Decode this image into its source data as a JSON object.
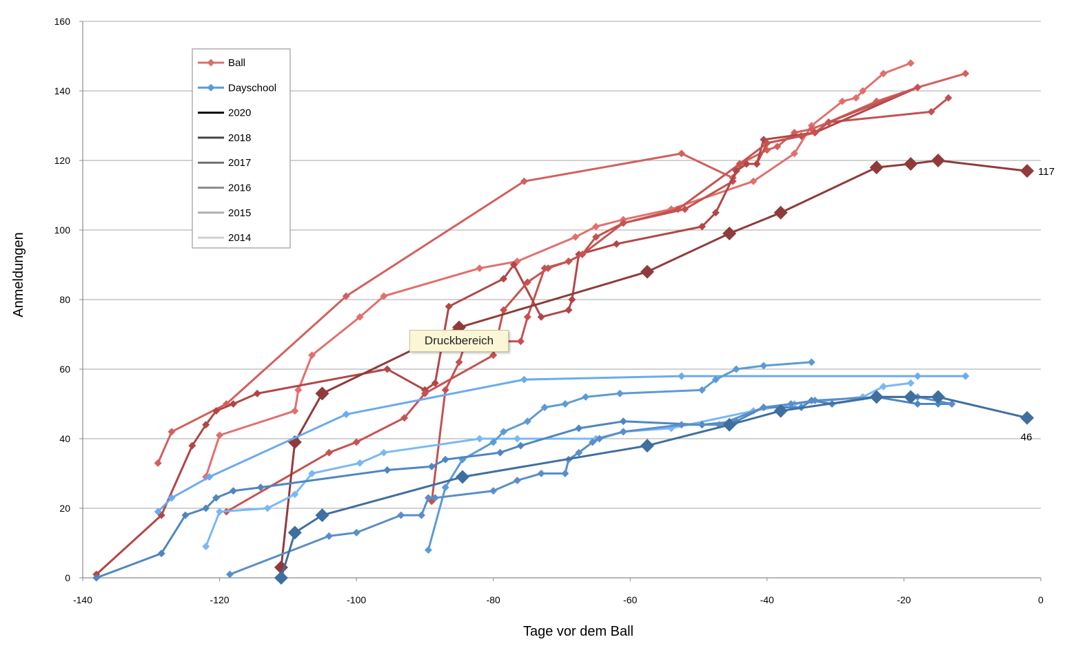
{
  "chart_data": {
    "type": "line",
    "xlabel": "Tage vor dem Ball",
    "ylabel": "Anmeldungen",
    "xlim": [
      -140,
      0
    ],
    "ylim": [
      0,
      160
    ],
    "x_ticks": [
      -140,
      -120,
      -100,
      -80,
      -60,
      -40,
      -20,
      0
    ],
    "y_ticks": [
      0,
      20,
      40,
      60,
      80,
      100,
      120,
      140,
      160
    ],
    "grid": "horizontal",
    "legend_position": "top-left",
    "legend": [
      {
        "label": "Ball",
        "color": "#d9706c",
        "marker": "diamond"
      },
      {
        "label": "Dayschool",
        "color": "#5b9bd5",
        "marker": "diamond"
      },
      {
        "label": "2020",
        "color": "#000000"
      },
      {
        "label": "2018",
        "color": "#444444"
      },
      {
        "label": "2017",
        "color": "#6f6f6f"
      },
      {
        "label": "2016",
        "color": "#8c8c8c"
      },
      {
        "label": "2015",
        "color": "#aeaeae"
      },
      {
        "label": "2014",
        "color": "#d0d0d0"
      }
    ],
    "tooltip": "Druckbereich",
    "series": [
      {
        "group": "Ball",
        "color": "#e0706d",
        "width": 3,
        "points": [
          [
            -122,
            29
          ],
          [
            -120,
            41
          ],
          [
            -109,
            48
          ],
          [
            -108.5,
            54
          ],
          [
            -106.5,
            64
          ],
          [
            -99.5,
            75
          ],
          [
            -96,
            81
          ],
          [
            -82,
            89
          ],
          [
            -76.5,
            91
          ],
          [
            -68,
            98
          ],
          [
            -65,
            101
          ],
          [
            -61,
            103
          ],
          [
            -54,
            106
          ],
          [
            -42,
            114
          ],
          [
            -36,
            122
          ],
          [
            -33.5,
            130
          ],
          [
            -29,
            137
          ],
          [
            -27,
            138
          ],
          [
            -26,
            140
          ],
          [
            -23,
            145
          ],
          [
            -19,
            148
          ]
        ]
      },
      {
        "group": "Ball",
        "color": "#d2605d",
        "width": 3,
        "points": [
          [
            -129,
            33
          ],
          [
            -127,
            42
          ],
          [
            -119,
            50
          ],
          [
            -101.5,
            81
          ],
          [
            -75.5,
            114
          ],
          [
            -52.5,
            122
          ],
          [
            -45,
            115
          ],
          [
            -44,
            119
          ],
          [
            -40,
            123
          ],
          [
            -38.5,
            124
          ],
          [
            -36,
            128
          ],
          [
            -33.5,
            129
          ],
          [
            -31,
            131
          ],
          [
            -24,
            137
          ],
          [
            -18,
            141
          ],
          [
            -11,
            145
          ]
        ]
      },
      {
        "group": "Ball",
        "color": "#c4514f",
        "width": 3,
        "points": [
          [
            -89,
            22
          ],
          [
            -87,
            54
          ],
          [
            -85,
            62
          ],
          [
            -84,
            68
          ],
          [
            -76,
            68
          ],
          [
            -75,
            75
          ],
          [
            -72.5,
            89
          ],
          [
            -69,
            91
          ],
          [
            -67,
            93
          ],
          [
            -65,
            98
          ],
          [
            -61,
            102
          ],
          [
            -52,
            106
          ],
          [
            -45,
            114
          ],
          [
            -44.5,
            117
          ],
          [
            -43,
            119
          ],
          [
            -41.5,
            119
          ],
          [
            -40,
            125
          ],
          [
            -35,
            127
          ],
          [
            -33,
            128
          ],
          [
            -31,
            131
          ],
          [
            -16,
            134
          ],
          [
            -13.5,
            138
          ]
        ]
      },
      {
        "group": "Ball",
        "color": "#b24646",
        "width": 3,
        "points": [
          [
            -138,
            1
          ],
          [
            -128.5,
            18
          ],
          [
            -124,
            38
          ],
          [
            -122,
            44
          ],
          [
            -120.5,
            48
          ],
          [
            -118,
            50
          ],
          [
            -114.5,
            53
          ],
          [
            -95.5,
            60
          ],
          [
            -90,
            54
          ],
          [
            -88.5,
            56
          ],
          [
            -86.5,
            78
          ],
          [
            -78.5,
            86
          ],
          [
            -77,
            90
          ],
          [
            -73,
            75
          ],
          [
            -69,
            77
          ],
          [
            -68.5,
            80
          ],
          [
            -67.5,
            93
          ],
          [
            -62,
            96
          ],
          [
            -49.5,
            101
          ],
          [
            -47.5,
            105
          ],
          [
            -44.5,
            117
          ],
          [
            -43,
            119
          ],
          [
            -41.5,
            119
          ],
          [
            -40.5,
            126
          ],
          [
            -33,
            128
          ],
          [
            -18,
            141
          ]
        ]
      },
      {
        "group": "Ball",
        "color": "#c55350",
        "width": 3,
        "points": [
          [
            -119,
            19
          ],
          [
            -104,
            36
          ],
          [
            -100,
            39
          ],
          [
            -93,
            46
          ],
          [
            -90,
            53
          ],
          [
            -80,
            64
          ],
          [
            -78.5,
            77
          ],
          [
            -75,
            85
          ],
          [
            -72,
            89
          ],
          [
            -69,
            91
          ],
          [
            -67,
            93
          ],
          [
            -61,
            102
          ],
          [
            -53,
            106
          ],
          [
            -44,
            119
          ],
          [
            -40,
            125
          ],
          [
            -33,
            128
          ],
          [
            -31,
            131
          ],
          [
            -18,
            141
          ]
        ]
      },
      {
        "group": "Ball",
        "color": "#8f3b3b",
        "width": 3,
        "marker": "large",
        "points": [
          [
            -111,
            3
          ],
          [
            -109,
            39
          ],
          [
            -105,
            53
          ],
          [
            -85,
            72
          ],
          [
            -57.5,
            88
          ],
          [
            -45.5,
            99
          ],
          [
            -38,
            105
          ],
          [
            -24,
            118
          ],
          [
            -19,
            119
          ],
          [
            -15,
            120
          ],
          [
            -2,
            117
          ]
        ]
      },
      {
        "group": "Dayschool",
        "color": "#7ab8f5",
        "width": 3,
        "points": [
          [
            -122,
            9
          ],
          [
            -120,
            19
          ],
          [
            -113,
            20
          ],
          [
            -109,
            24
          ],
          [
            -106.5,
            30
          ],
          [
            -99.5,
            33
          ],
          [
            -96,
            36
          ],
          [
            -82,
            40
          ],
          [
            -76.5,
            40
          ],
          [
            -65,
            40
          ],
          [
            -61,
            42
          ],
          [
            -54,
            43
          ],
          [
            -42,
            48
          ],
          [
            -36,
            50
          ],
          [
            -26,
            52
          ],
          [
            -23,
            55
          ],
          [
            -19,
            56
          ]
        ]
      },
      {
        "group": "Dayschool",
        "color": "#6aaaf0",
        "width": 3,
        "points": [
          [
            -129,
            19
          ],
          [
            -127,
            23
          ],
          [
            -121.5,
            29
          ],
          [
            -101.5,
            47
          ],
          [
            -75.5,
            57
          ],
          [
            -52.5,
            58
          ],
          [
            -18,
            58
          ],
          [
            -11,
            58
          ]
        ]
      },
      {
        "group": "Dayschool",
        "color": "#5b9bd5",
        "width": 3,
        "points": [
          [
            -89.5,
            8
          ],
          [
            -87,
            26
          ],
          [
            -84.5,
            34
          ],
          [
            -80,
            39
          ],
          [
            -78.5,
            42
          ],
          [
            -75,
            45
          ],
          [
            -72.5,
            49
          ],
          [
            -69.5,
            50
          ],
          [
            -66.5,
            52
          ],
          [
            -61.5,
            53
          ],
          [
            -49.5,
            54
          ],
          [
            -47.5,
            57
          ],
          [
            -44.5,
            60
          ],
          [
            -40.5,
            61
          ],
          [
            -33.5,
            62
          ]
        ]
      },
      {
        "group": "Dayschool",
        "color": "#4f86c0",
        "width": 3,
        "points": [
          [
            -138,
            0
          ],
          [
            -128.5,
            7
          ],
          [
            -125,
            18
          ],
          [
            -122,
            20
          ],
          [
            -120.5,
            23
          ],
          [
            -118,
            25
          ],
          [
            -114,
            26
          ],
          [
            -95.5,
            31
          ],
          [
            -89,
            32
          ],
          [
            -87,
            34
          ],
          [
            -79,
            36
          ],
          [
            -76,
            38
          ],
          [
            -67.5,
            43
          ],
          [
            -61,
            45
          ],
          [
            -49.5,
            44
          ],
          [
            -44.5,
            45
          ],
          [
            -40.5,
            49
          ],
          [
            -35,
            49
          ],
          [
            -33.5,
            51
          ],
          [
            -30.5,
            50
          ],
          [
            -24,
            52
          ],
          [
            -18,
            50
          ],
          [
            -15,
            50
          ],
          [
            -13,
            50
          ]
        ]
      },
      {
        "group": "Dayschool",
        "color": "#5a8ec8",
        "width": 3,
        "points": [
          [
            -118.5,
            1
          ],
          [
            -104,
            12
          ],
          [
            -100,
            13
          ],
          [
            -93.5,
            18
          ],
          [
            -90.5,
            18
          ],
          [
            -89.5,
            23
          ],
          [
            -88.5,
            23
          ],
          [
            -80,
            25
          ],
          [
            -76.5,
            28
          ],
          [
            -73,
            30
          ],
          [
            -69.5,
            30
          ],
          [
            -69,
            34
          ],
          [
            -67.5,
            36
          ],
          [
            -65.5,
            39
          ],
          [
            -64.5,
            40
          ],
          [
            -61,
            42
          ],
          [
            -52.5,
            44
          ],
          [
            -47,
            44
          ],
          [
            -40.5,
            49
          ],
          [
            -36.5,
            50
          ],
          [
            -33,
            51
          ],
          [
            -24,
            52
          ],
          [
            -18,
            52
          ],
          [
            -13,
            50
          ]
        ]
      },
      {
        "group": "Dayschool",
        "color": "#3f6f9e",
        "width": 3,
        "marker": "large",
        "points": [
          [
            -111,
            0
          ],
          [
            -109,
            13
          ],
          [
            -105,
            18
          ],
          [
            -84.5,
            29
          ],
          [
            -57.5,
            38
          ],
          [
            -45.5,
            44
          ],
          [
            -38,
            48
          ],
          [
            -24,
            52
          ],
          [
            -19,
            52
          ],
          [
            -15,
            52
          ],
          [
            -2,
            46
          ]
        ]
      }
    ],
    "end_labels": [
      {
        "text": "117",
        "x": -2,
        "y": 117
      },
      {
        "text": "46",
        "x": -2,
        "y": 46
      }
    ]
  }
}
